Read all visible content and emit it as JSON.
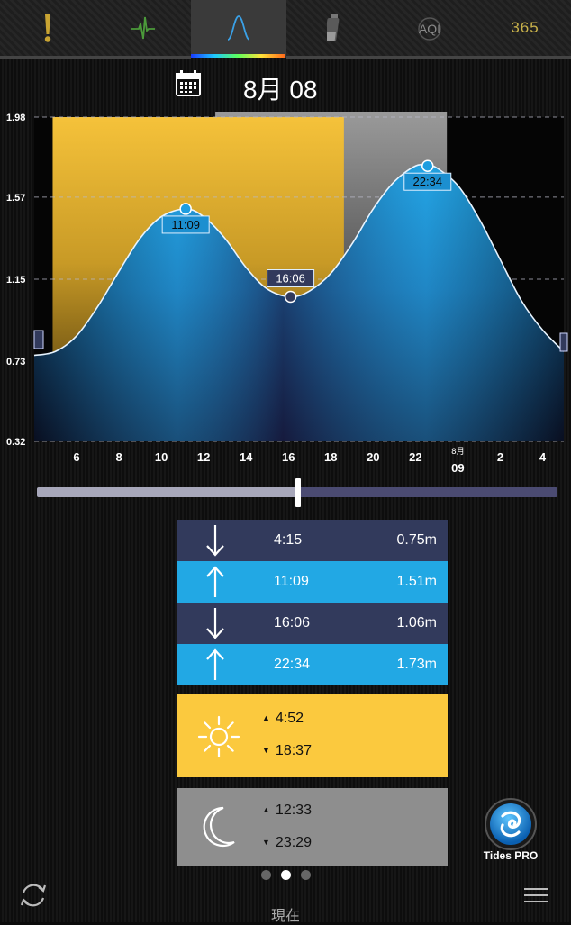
{
  "tabs": [
    {
      "name": "alert",
      "icon": "exclamation-icon"
    },
    {
      "name": "pulse",
      "icon": "pulse-icon"
    },
    {
      "name": "tide-curve",
      "icon": "tide-curve-icon",
      "active": true
    },
    {
      "name": "battery",
      "icon": "battery-icon"
    },
    {
      "name": "aqi",
      "label": "AQI"
    },
    {
      "name": "365",
      "label": "365"
    }
  ],
  "date": {
    "label": "8月 08",
    "icon": "calendar-icon"
  },
  "chart_data": {
    "type": "area",
    "ylim": [
      0.32,
      1.98
    ],
    "y_ticks": [
      "1.98",
      "1.57",
      "1.15",
      "0.73",
      "0.32"
    ],
    "x_ticks": [
      "6",
      "8",
      "10",
      "12",
      "14",
      "16",
      "18",
      "20",
      "22",
      "8月",
      "09",
      "2",
      "4"
    ],
    "x_hours": [
      6,
      8,
      10,
      12,
      14,
      16,
      18,
      20,
      22,
      24,
      26,
      28
    ],
    "day_divider": {
      "top": "8月",
      "bottom": "09"
    },
    "series": [
      {
        "x": [
          4.0,
          5.0,
          6.0,
          7.0,
          8.0,
          9.0,
          10.0,
          11.15,
          12.0,
          13.0,
          14.0,
          15.0,
          16.1,
          17.0,
          18.0,
          19.0,
          20.0,
          21.0,
          22.0,
          22.57,
          23.0,
          24.0,
          25.0,
          26.0,
          27.0,
          28.0,
          29.0
        ],
        "y": [
          0.76,
          0.78,
          0.86,
          1.01,
          1.19,
          1.36,
          1.47,
          1.51,
          1.47,
          1.36,
          1.21,
          1.1,
          1.06,
          1.09,
          1.18,
          1.33,
          1.51,
          1.65,
          1.73,
          1.73,
          1.72,
          1.63,
          1.46,
          1.25,
          1.04,
          0.89,
          0.78
        ]
      }
    ],
    "daylight": {
      "start": 4.87,
      "end": 18.62
    },
    "moonlight": {
      "start": 12.55,
      "end": 23.48
    },
    "extremes": [
      {
        "time": "11:09",
        "hour": 11.15,
        "height": 1.51,
        "type": "high"
      },
      {
        "time": "16:06",
        "hour": 16.1,
        "height": 1.06,
        "type": "low"
      },
      {
        "time": "22:34",
        "hour": 22.57,
        "height": 1.73,
        "type": "high"
      }
    ]
  },
  "slider": {
    "value_percent": 50
  },
  "tides": [
    {
      "type": "low",
      "icon": "arrow-down-icon",
      "time": "4:15",
      "height": "0.75m"
    },
    {
      "type": "high",
      "icon": "arrow-up-icon",
      "time": "11:09",
      "height": "1.51m"
    },
    {
      "type": "low",
      "icon": "arrow-down-icon",
      "time": "16:06",
      "height": "1.06m"
    },
    {
      "type": "high",
      "icon": "arrow-up-icon",
      "time": "22:34",
      "height": "1.73m"
    }
  ],
  "sun": {
    "icon": "sun-icon",
    "rise": "4:52",
    "set": "18:37"
  },
  "moon": {
    "icon": "moon-icon",
    "rise": "12:33",
    "set": "23:29"
  },
  "pager": {
    "count": 3,
    "active": 1
  },
  "bottom": {
    "now_label": "現在",
    "app_badge": "Tides PRO"
  },
  "colors": {
    "tide_high": "#22a8e4",
    "tide_low": "#323a5c",
    "sun": "#fbc93e",
    "moon": "#8e8e8e"
  }
}
